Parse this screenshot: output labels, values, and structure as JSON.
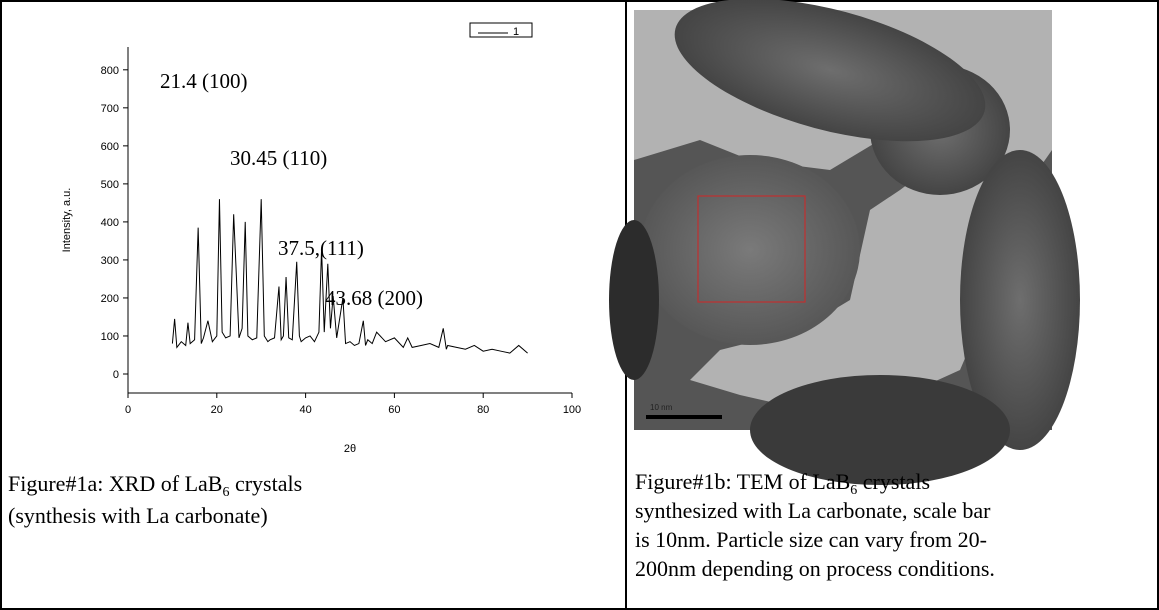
{
  "chart_data": {
    "type": "line",
    "xlabel": "2θ",
    "ylabel": "Intensity, a.u.",
    "x": [
      10,
      10.5,
      11,
      12,
      13,
      13.5,
      14,
      15,
      15.8,
      16.5,
      17,
      18,
      19,
      20,
      20.6,
      21.2,
      22,
      23,
      23.8,
      24.4,
      25,
      25.7,
      26.4,
      27,
      28,
      29,
      30,
      30.7,
      31.5,
      32,
      33,
      34,
      34.5,
      35,
      35.6,
      36.2,
      37,
      38,
      38.6,
      39,
      40,
      41,
      42,
      43,
      43.6,
      44.2,
      45,
      45.6,
      46.2,
      47,
      48.4,
      49,
      50,
      51,
      52,
      53,
      53.5,
      54,
      55,
      56,
      58,
      60,
      62,
      63,
      64,
      66,
      68,
      70,
      71,
      71.7,
      72,
      74,
      76,
      78,
      80,
      82,
      84,
      86,
      88,
      90
    ],
    "series": [
      {
        "name": "1",
        "color": "#000000",
        "values": [
          80,
          145,
          70,
          85,
          75,
          135,
          80,
          90,
          385,
          80,
          95,
          140,
          85,
          100,
          460,
          110,
          95,
          100,
          420,
          260,
          95,
          120,
          400,
          100,
          90,
          95,
          460,
          100,
          85,
          90,
          95,
          230,
          90,
          100,
          255,
          95,
          90,
          295,
          100,
          85,
          95,
          100,
          85,
          110,
          330,
          110,
          290,
          120,
          205,
          95,
          200,
          80,
          85,
          75,
          80,
          140,
          75,
          90,
          80,
          110,
          85,
          95,
          70,
          95,
          70,
          75,
          80,
          70,
          120,
          65,
          75,
          70,
          65,
          75,
          60,
          65,
          60,
          55,
          75,
          55
        ]
      }
    ],
    "xlim": [
      0,
      100
    ],
    "xticks": [
      0,
      20,
      40,
      60,
      80,
      100
    ],
    "ylim": [
      -50,
      860
    ],
    "yticks": [
      0,
      100,
      200,
      300,
      400,
      500,
      600,
      700,
      800
    ],
    "annotations": [
      "21.4 (100)",
      "30.45 (110)",
      "37.5,(111)",
      "43.68 (200)"
    ]
  },
  "captions": {
    "a": [
      [
        "Figure#1a: XRD of LaB",
        "6",
        " crystals"
      ],
      [
        "(synthesis with La carbonate)"
      ]
    ],
    "b": [
      [
        "Figure#1b: TEM of LaB",
        "6",
        " crystals"
      ],
      [
        "synthesized with La carbonate, scale bar"
      ],
      [
        "is 10nm.  Particle size can vary from 20-"
      ],
      [
        "200nm depending on process conditions."
      ]
    ]
  },
  "image": {
    "scale_label": "10 nm"
  }
}
